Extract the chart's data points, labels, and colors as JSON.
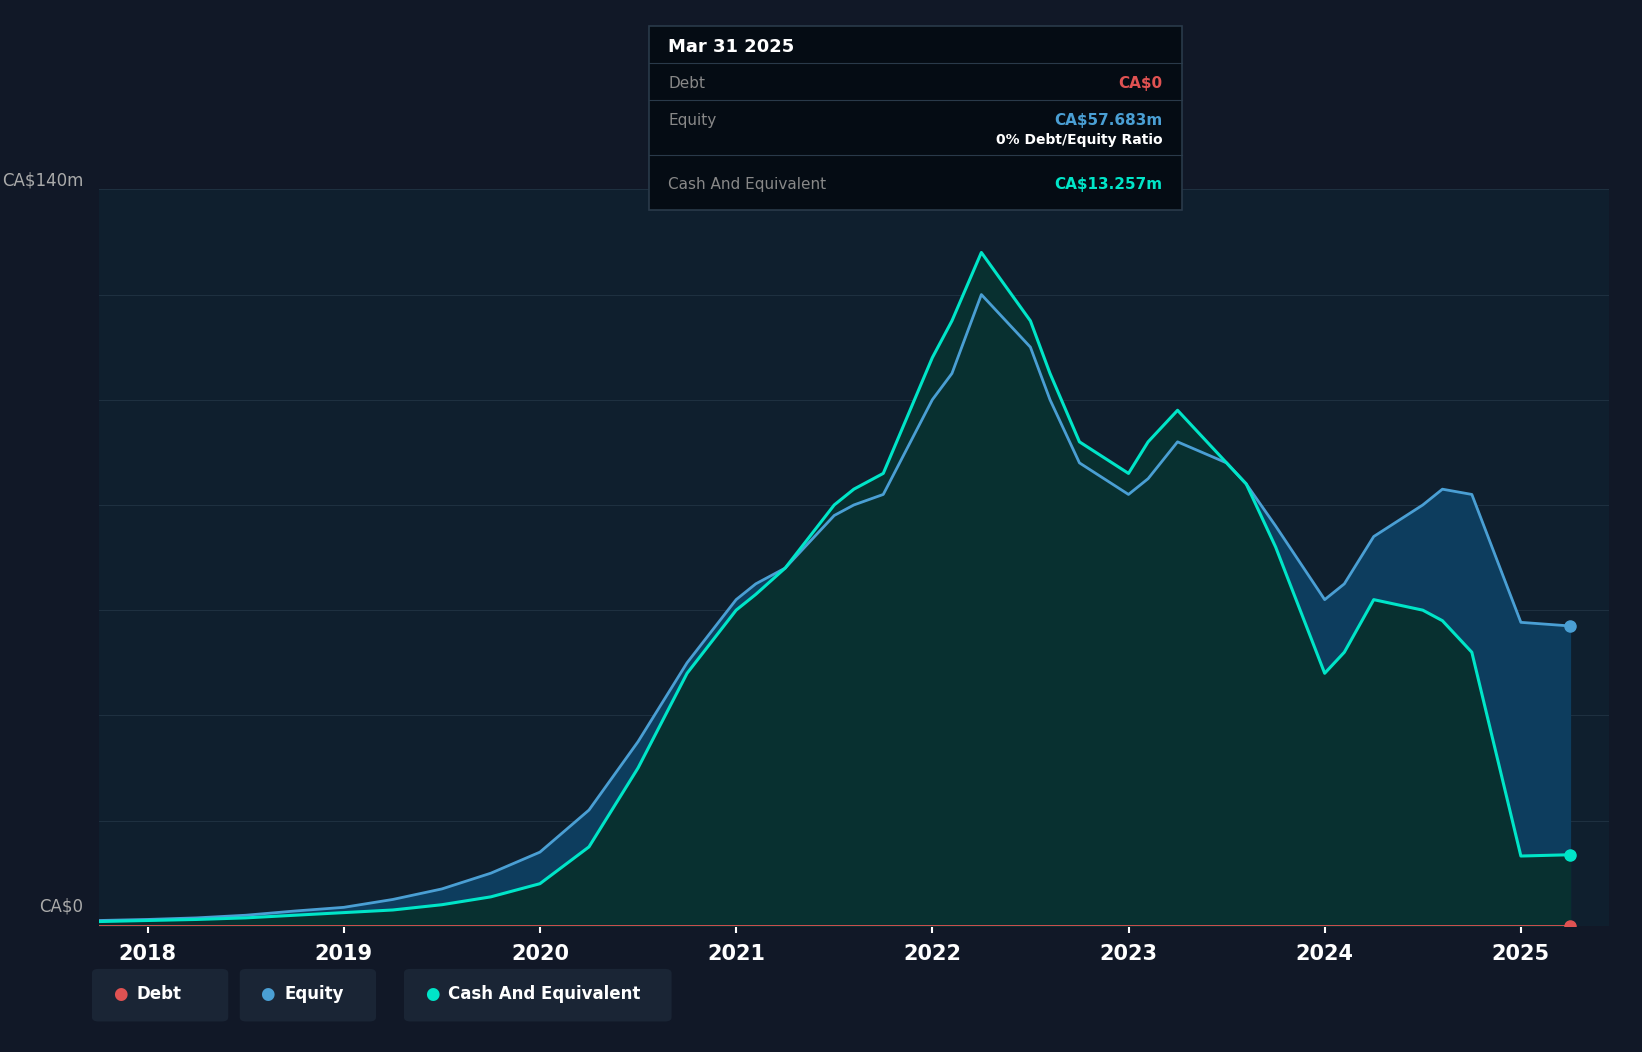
{
  "bg_color": "#111827",
  "plot_bg_color": "#0f1f2e",
  "grid_color": "#1e3040",
  "y_label_top": "CA$140m",
  "y_label_bottom": "CA$0",
  "x_ticks": [
    2018,
    2019,
    2020,
    2021,
    2022,
    2023,
    2024,
    2025
  ],
  "debt_color": "#e05252",
  "equity_color": "#4a9fd4",
  "cash_color": "#00e5c8",
  "equity_fill_color": "#0d3d5e",
  "cash_fill_color": "#083030",
  "tooltip": {
    "title": "Mar 31 2025",
    "debt_label": "Debt",
    "debt_value": "CA$0",
    "equity_label": "Equity",
    "equity_value": "CA$57.683m",
    "ratio_text": "0% Debt/Equity Ratio",
    "cash_label": "Cash And Equivalent",
    "cash_value": "CA$13.257m"
  },
  "time": [
    2017.75,
    2018.0,
    2018.25,
    2018.5,
    2018.75,
    2019.0,
    2019.25,
    2019.5,
    2019.75,
    2020.0,
    2020.25,
    2020.5,
    2020.75,
    2021.0,
    2021.1,
    2021.25,
    2021.5,
    2021.6,
    2021.75,
    2022.0,
    2022.1,
    2022.25,
    2022.5,
    2022.6,
    2022.75,
    2023.0,
    2023.1,
    2023.25,
    2023.5,
    2023.6,
    2023.75,
    2024.0,
    2024.1,
    2024.25,
    2024.5,
    2024.6,
    2024.75,
    2025.0,
    2025.25
  ],
  "debt": [
    0,
    0,
    0,
    0,
    0,
    0,
    0,
    0,
    0,
    0,
    0,
    0,
    0,
    0,
    0,
    0,
    0,
    0,
    0,
    0,
    0,
    0,
    0,
    0,
    0,
    0,
    0,
    0,
    0,
    0,
    0,
    0,
    0,
    0,
    0,
    0,
    0,
    0,
    0
  ],
  "equity": [
    1.0,
    1.2,
    1.5,
    2.0,
    2.8,
    3.5,
    5.0,
    7.0,
    10.0,
    14.0,
    22.0,
    35.0,
    50.0,
    62.0,
    65.0,
    68.0,
    78.0,
    80.0,
    82.0,
    100.0,
    105.0,
    120.0,
    110.0,
    100.0,
    88.0,
    82.0,
    85.0,
    92.0,
    88.0,
    84.0,
    76.0,
    62.0,
    65.0,
    74.0,
    80.0,
    83.0,
    82.0,
    57.683,
    57.0
  ],
  "cash": [
    0.8,
    1.0,
    1.2,
    1.5,
    2.0,
    2.5,
    3.0,
    4.0,
    5.5,
    8.0,
    15.0,
    30.0,
    48.0,
    60.0,
    63.0,
    68.0,
    80.0,
    83.0,
    86.0,
    108.0,
    115.0,
    128.0,
    115.0,
    105.0,
    92.0,
    86.0,
    92.0,
    98.0,
    88.0,
    84.0,
    72.0,
    48.0,
    52.0,
    62.0,
    60.0,
    58.0,
    52.0,
    13.257,
    13.5
  ],
  "ylim": [
    0,
    140
  ],
  "xlim": [
    2017.75,
    2025.45
  ],
  "legend_items": [
    {
      "label": "Debt",
      "color": "#e05252"
    },
    {
      "label": "Equity",
      "color": "#4a9fd4"
    },
    {
      "label": "Cash And Equivalent",
      "color": "#00e5c8"
    }
  ]
}
